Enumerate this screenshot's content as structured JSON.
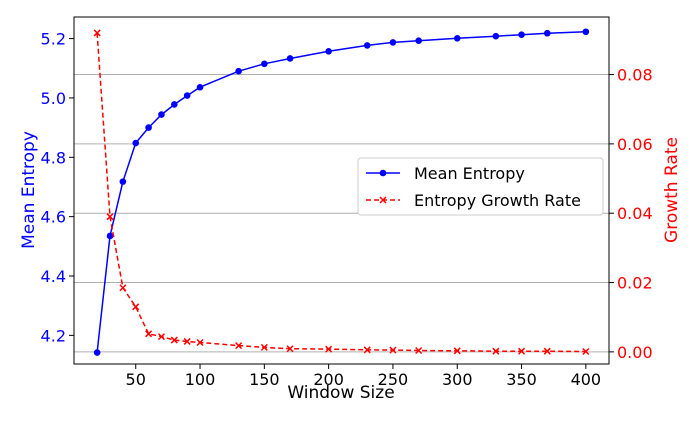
{
  "chart_data": {
    "type": "line",
    "title": "",
    "xlabel": "Window Size",
    "ylabel_left": "Mean Entropy",
    "ylabel_right": "Growth Rate",
    "xlim": [
      2,
      418
    ],
    "ylim_left": [
      4.1035,
      5.2727
    ],
    "ylim_right": [
      -0.0035,
      0.0966
    ],
    "x_ticks": [
      50,
      100,
      150,
      200,
      250,
      300,
      350,
      400
    ],
    "y_ticks_left": [
      4.2,
      4.4,
      4.6,
      4.8,
      5.0,
      5.2
    ],
    "y_ticks_right": [
      0.0,
      0.02,
      0.04,
      0.06,
      0.08
    ],
    "y_tick_labels_left": [
      "4.2",
      "4.4",
      "4.6",
      "4.8",
      "5.0",
      "5.2"
    ],
    "y_tick_labels_right": [
      "0.00",
      "0.02",
      "0.04",
      "0.06",
      "0.08"
    ],
    "grid": "horizontal (right axis)",
    "legend_position": "center-right",
    "colors": {
      "left": "#0000ff",
      "right": "#ff0000",
      "grid": "#b0b0b0"
    },
    "x": [
      20,
      30,
      40,
      50,
      60,
      70,
      80,
      90,
      100,
      130,
      150,
      170,
      200,
      230,
      250,
      270,
      300,
      330,
      350,
      370,
      400
    ],
    "series": [
      {
        "name": "Mean Entropy",
        "axis": "left",
        "color": "#0000ff",
        "style": "solid",
        "marker": "circle",
        "values": [
          4.142,
          4.535,
          4.718,
          4.848,
          4.9,
          4.944,
          4.978,
          5.008,
          5.036,
          5.09,
          5.115,
          5.133,
          5.157,
          5.177,
          5.187,
          5.193,
          5.201,
          5.208,
          5.213,
          5.218,
          5.223
        ]
      },
      {
        "name": "Entropy Growth Rate",
        "axis": "right",
        "color": "#ff0000",
        "style": "dashed",
        "marker": "x",
        "values": [
          0.092,
          0.039,
          0.0185,
          0.013,
          0.0052,
          0.0044,
          0.0034,
          0.003,
          0.0027,
          0.0018,
          0.0013,
          0.0009,
          0.0008,
          0.0006,
          0.0005,
          0.0004,
          0.0003,
          0.0002,
          0.0002,
          0.0002,
          0.0001
        ]
      }
    ]
  }
}
